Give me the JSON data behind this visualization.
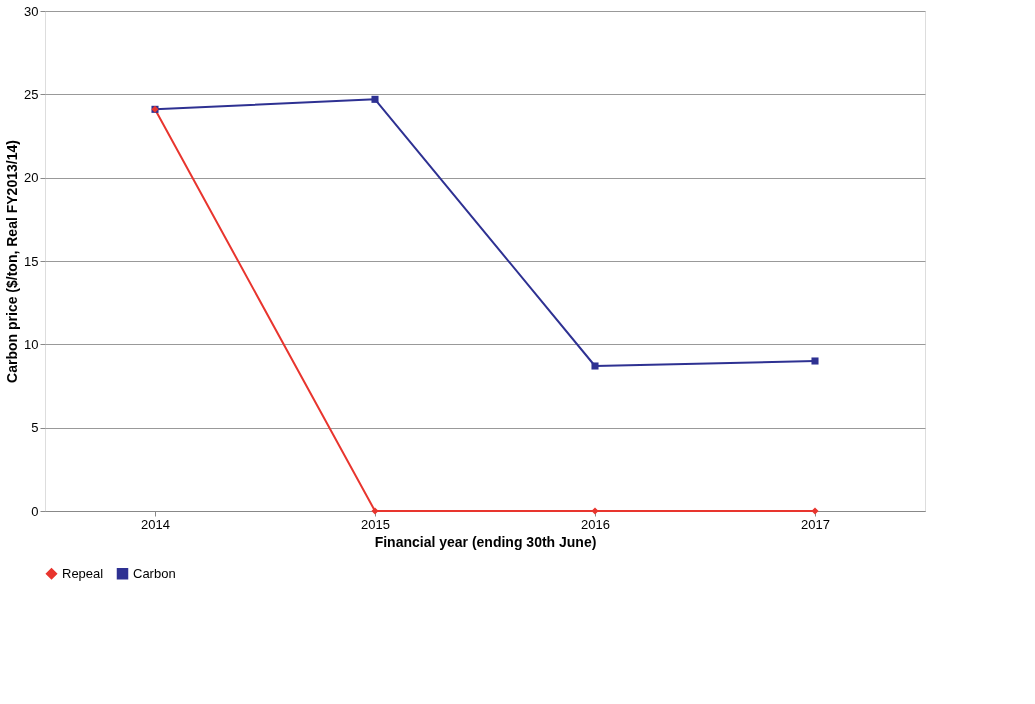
{
  "chart_data": {
    "type": "line",
    "xlabel": "Financial year (ending 30th June)",
    "ylabel": "Carbon price ($/ton, Real FY2013/14)",
    "categories": [
      "2014",
      "2015",
      "2016",
      "2017"
    ],
    "series": [
      {
        "name": "Repeal",
        "color": "#e8352e",
        "marker": "diamond",
        "values": [
          24.1,
          0,
          0,
          0
        ]
      },
      {
        "name": "Carbon",
        "color": "#2e3192",
        "marker": "square",
        "values": [
          24.1,
          24.7,
          8.7,
          9.0
        ]
      }
    ],
    "ylim": [
      0,
      30
    ],
    "yticks": [
      0,
      5,
      10,
      15,
      20,
      25,
      30
    ],
    "grid": "y",
    "legend": "bottom",
    "line_style": "solid"
  }
}
